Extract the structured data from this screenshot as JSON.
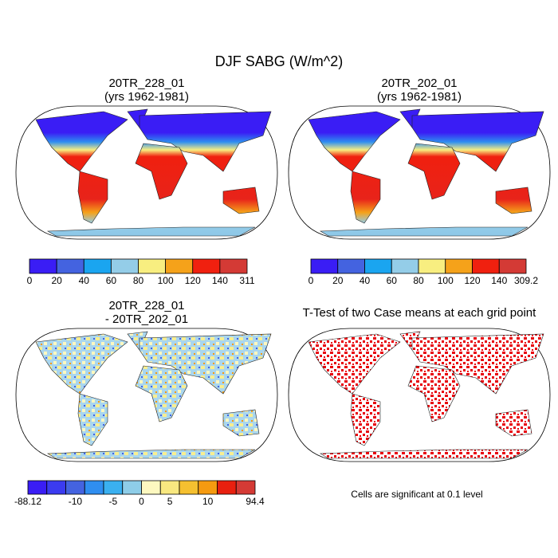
{
  "title": "DJF SABG (W/m^2)",
  "panels": [
    {
      "title_lines": [
        "20TR_228_01",
        "(yrs 1962-1981)"
      ],
      "colorbar": {
        "colors": [
          "#3a1df5",
          "#4463e0",
          "#1aa5f0",
          "#94cde8",
          "#f8ee80",
          "#f5a21a",
          "#f0200f",
          "#d43a35"
        ],
        "ticks": [
          0,
          20,
          40,
          60,
          80,
          100,
          120,
          140,
          311
        ]
      }
    },
    {
      "title_lines": [
        "20TR_202_01",
        "(yrs 1962-1981)"
      ],
      "colorbar": {
        "colors": [
          "#3a1df5",
          "#4463e0",
          "#1aa5f0",
          "#94cde8",
          "#f8ee80",
          "#f5a21a",
          "#f0200f",
          "#d43a35"
        ],
        "ticks": [
          0,
          20,
          40,
          60,
          80,
          100,
          120,
          140,
          309.2
        ]
      }
    },
    {
      "title_lines": [
        "20TR_228_01",
        "- 20TR_202_01"
      ],
      "colorbar": {
        "colors": [
          "#3a1df5",
          "#3b3bf0",
          "#4463e0",
          "#2f8ef0",
          "#3ab0f0",
          "#8ecde8",
          "#fdf8c0",
          "#f8e880",
          "#f5c030",
          "#f59a10",
          "#e8200f",
          "#d43a35"
        ],
        "ticks": [
          -88.12,
          -10,
          -5,
          0,
          5,
          10,
          94.4
        ]
      }
    },
    {
      "title_lines": [
        "T-Test of two Case means at each grid point"
      ],
      "note": "Cells are significant at 0.1 level"
    }
  ]
}
